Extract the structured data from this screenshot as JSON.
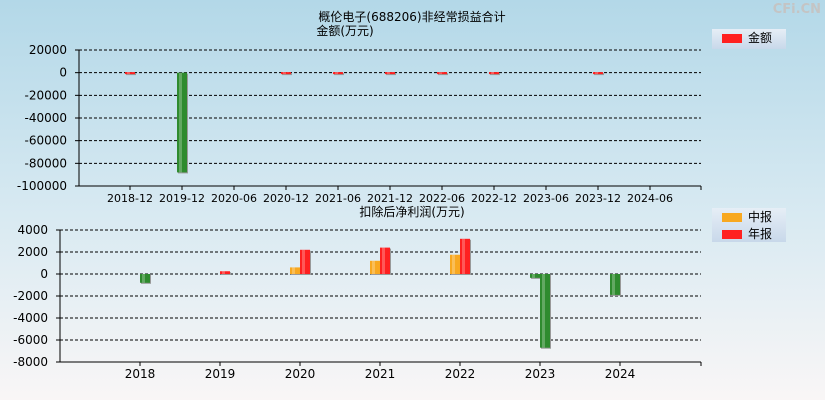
{
  "watermark": "CFi.CN",
  "chart_data": [
    {
      "type": "bar",
      "title": "概伦电子(688206)非经常损益合计",
      "subtitle": "金额(万元)",
      "categories": [
        "2018-12",
        "2019-12",
        "2020-06",
        "2020-12",
        "2021-06",
        "2021-12",
        "2022-06",
        "2022-12",
        "2023-06",
        "2023-12",
        "2024-06"
      ],
      "series": [
        {
          "name": "金额",
          "values": [
            500,
            -88000,
            0,
            500,
            500,
            500,
            500,
            500,
            0,
            500,
            0
          ]
        }
      ],
      "yticks": [
        20000,
        0,
        -20000,
        -40000,
        -60000,
        -80000,
        -100000
      ],
      "ylim": [
        -100000,
        20000
      ],
      "grid": true,
      "legend": "right",
      "colors": {
        "positive": "#ff2020",
        "negative": "#2e8b2e"
      }
    },
    {
      "type": "bar",
      "title": "扣除后净利润(万元)",
      "categories": [
        "2018",
        "2019",
        "2020",
        "2021",
        "2022",
        "2023",
        "2024"
      ],
      "series": [
        {
          "name": "中报",
          "values": [
            null,
            null,
            600,
            1200,
            1750,
            -350,
            -1900
          ]
        },
        {
          "name": "年报",
          "values": [
            -800,
            250,
            2200,
            2400,
            3200,
            -6700,
            null
          ]
        }
      ],
      "yticks": [
        4000,
        2000,
        0,
        -2000,
        -4000,
        -6000,
        -8000
      ],
      "ylim": [
        -8000,
        4000
      ],
      "grid": true,
      "legend": "right",
      "colors": {
        "中报": "#f8a820",
        "年报": "#ff2020",
        "negative": "#2e8b2e"
      }
    }
  ]
}
